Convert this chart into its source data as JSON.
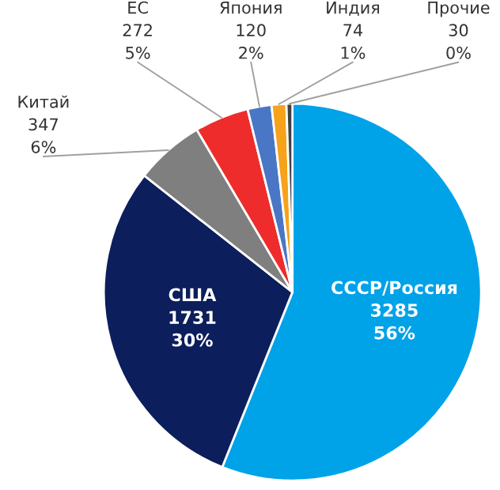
{
  "chart_data": {
    "type": "pie",
    "categories": [
      "СССР/Россия",
      "США",
      "Китай",
      "ЕС",
      "Япония",
      "Индия",
      "Прочие"
    ],
    "values": [
      3285,
      1731,
      347,
      272,
      120,
      74,
      30
    ],
    "value_labels": [
      "3285\n56%",
      "1731\n30%",
      "347\n6%",
      "272\n5%",
      "120\n2%",
      "74\n1%",
      "30\n0%"
    ],
    "colors": [
      "#00a2e8",
      "#0c1e5b",
      "#7f7f7f",
      "#ee2c2c",
      "#4a76c6",
      "#f7a21b",
      "#404040"
    ]
  }
}
